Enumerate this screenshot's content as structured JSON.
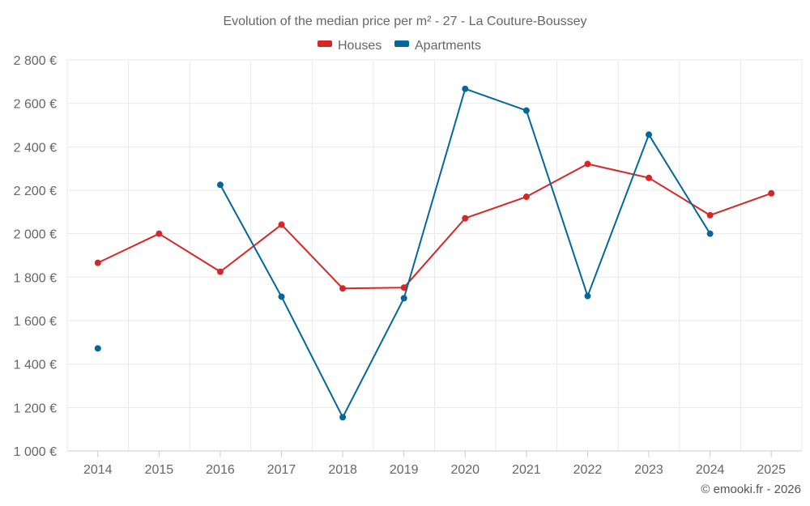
{
  "chart_data": {
    "type": "line",
    "title": "Evolution of the median price per m² - 27 - La Couture-Boussey",
    "xlabel": "",
    "ylabel": "",
    "categories": [
      "2014",
      "2015",
      "2016",
      "2017",
      "2018",
      "2019",
      "2020",
      "2021",
      "2022",
      "2023",
      "2024",
      "2025"
    ],
    "ylim": [
      1000,
      2800
    ],
    "yticks": [
      1000,
      1200,
      1400,
      1600,
      1800,
      2000,
      2200,
      2400,
      2600,
      2800
    ],
    "ytick_labels": [
      "1 000 €",
      "1 200 €",
      "1 400 €",
      "1 600 €",
      "1 800 €",
      "2 000 €",
      "2 200 €",
      "2 400 €",
      "2 600 €",
      "2 800 €"
    ],
    "grid": true,
    "legend_position": "top-center",
    "series": [
      {
        "name": "Houses",
        "color": "#d62728",
        "values": [
          1866,
          2000,
          1825,
          2042,
          1748,
          1752,
          2071,
          2170,
          2321,
          2257,
          2085,
          2186
        ]
      },
      {
        "name": "Apartments",
        "color": "#04679b",
        "values": [
          1472,
          null,
          2225,
          1710,
          1155,
          1703,
          2667,
          2567,
          1713,
          2456,
          2000,
          null
        ]
      }
    ]
  },
  "credit": "© emooki.fr - 2026"
}
